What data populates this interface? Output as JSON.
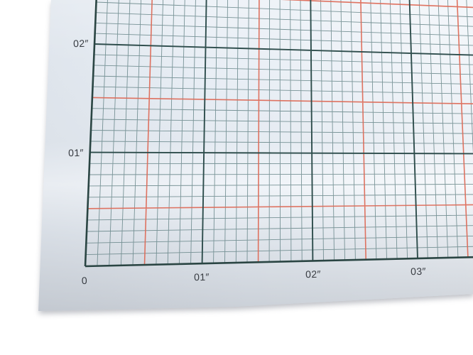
{
  "graph_paper": {
    "description": "photographed sheet of inch graph paper",
    "units": "inches",
    "x_axis": {
      "ticks": [
        {
          "label": "0",
          "inches": 0
        },
        {
          "label": "01″",
          "inches": 1
        },
        {
          "label": "02″",
          "inches": 2
        },
        {
          "label": "03″",
          "inches": 3
        }
      ]
    },
    "y_axis": {
      "ticks": [
        {
          "label": "01″",
          "inches": 1
        },
        {
          "label": "02″",
          "inches": 2
        }
      ]
    },
    "grid": {
      "minor_step_inches": 0.1,
      "red_step_inches": 0.5,
      "major_step_inches": 1,
      "x_extent_inches": 3.75,
      "y_extent_inches": 2.65
    },
    "colors": {
      "background": "#ffffff",
      "paper": "#e8eef5",
      "minor_line": "#587a7c",
      "red_line": "#dd6b59",
      "major_line": "#2e4d4c",
      "axis_line": "#2a4543",
      "label": "#383c42"
    }
  }
}
